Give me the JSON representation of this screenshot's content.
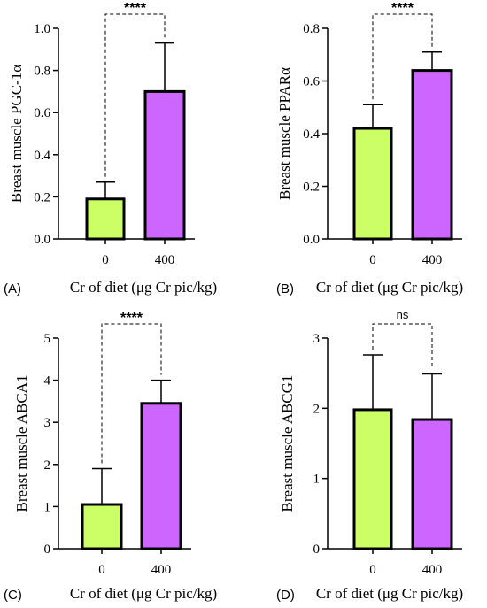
{
  "chart_data": [
    {
      "type": "bar",
      "panel_label": "(A)",
      "categories": [
        "0",
        "400"
      ],
      "values": [
        0.19,
        0.7
      ],
      "errors": [
        0.08,
        0.23
      ],
      "ylabel": "Breast muscle PGC-1α",
      "xlabel": "Cr of diet (μg Cr pic/kg)",
      "ylim": [
        0,
        1.0
      ],
      "yticks": [
        "0.0",
        "0.2",
        "0.4",
        "0.6",
        "0.8",
        "1.0"
      ],
      "significance": "****",
      "bar_colors": [
        "#ccff66",
        "#cc66ff"
      ]
    },
    {
      "type": "bar",
      "panel_label": "(B)",
      "categories": [
        "0",
        "400"
      ],
      "values": [
        0.42,
        0.64
      ],
      "errors": [
        0.09,
        0.07
      ],
      "ylabel": "Breast muscle PPARα",
      "xlabel": "Cr of diet (μg Cr pic/kg)",
      "ylim": [
        0,
        0.8
      ],
      "yticks": [
        "0.0",
        "0.2",
        "0.4",
        "0.6",
        "0.8"
      ],
      "significance": "****",
      "bar_colors": [
        "#ccff66",
        "#cc66ff"
      ]
    },
    {
      "type": "bar",
      "panel_label": "(C)",
      "categories": [
        "0",
        "400"
      ],
      "values": [
        1.05,
        3.45
      ],
      "errors": [
        0.85,
        0.55
      ],
      "ylabel": "Breast muscle ABCA1",
      "xlabel": "Cr of diet (μg Cr pic/kg)",
      "ylim": [
        0,
        5
      ],
      "yticks": [
        "0",
        "1",
        "2",
        "3",
        "4",
        "5"
      ],
      "significance": "****",
      "bar_colors": [
        "#ccff66",
        "#cc66ff"
      ]
    },
    {
      "type": "bar",
      "panel_label": "(D)",
      "categories": [
        "0",
        "400"
      ],
      "values": [
        1.98,
        1.84
      ],
      "errors": [
        0.78,
        0.65
      ],
      "ylabel": "Breast muscle ABCG1",
      "xlabel": "Cr of diet (μg Cr pic/kg)",
      "ylim": [
        0,
        3
      ],
      "yticks": [
        "0",
        "1",
        "2",
        "3"
      ],
      "significance": "ns",
      "bar_colors": [
        "#ccff66",
        "#cc66ff"
      ]
    }
  ]
}
